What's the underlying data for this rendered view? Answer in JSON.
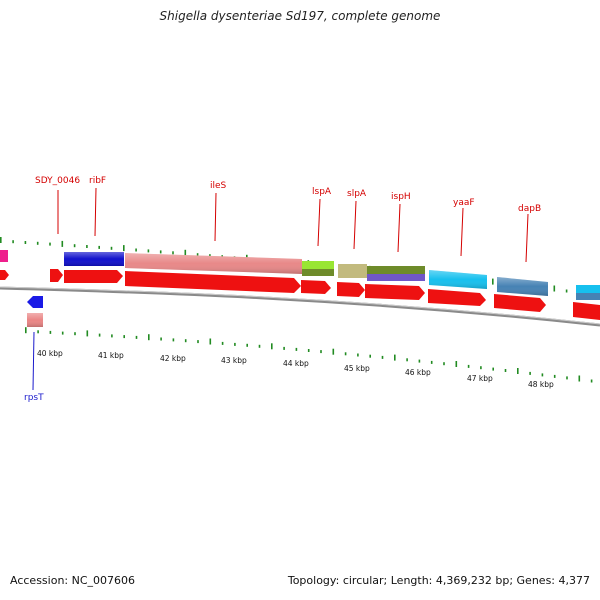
{
  "title": "Shigella dysenteriae Sd197, complete genome",
  "footer": {
    "accession": "Accession: NC_007606",
    "summary": "Topology: circular; Length: 4,369,232 bp; Genes: 4,377"
  },
  "colors": {
    "background": "#ffffff",
    "cds_red": "#ee1111",
    "label_red": "#d40000",
    "label_blue": "#1a1acc",
    "backbone": "#8a8a8a",
    "tick_green": "#228b22"
  },
  "scale_labels": [
    "40 kbp",
    "41 kbp",
    "42 kbp",
    "43 kbp",
    "44 kbp",
    "45 kbp",
    "46 kbp",
    "47 kbp",
    "48 kbp"
  ],
  "gene_labels": [
    {
      "name": "SDY_0046",
      "color": "#d40000"
    },
    {
      "name": "ribF",
      "color": "#d40000"
    },
    {
      "name": "ileS",
      "color": "#d40000"
    },
    {
      "name": "lspA",
      "color": "#d40000"
    },
    {
      "name": "slpA",
      "color": "#d40000"
    },
    {
      "name": "ispH",
      "color": "#d40000"
    },
    {
      "name": "yaaF",
      "color": "#d40000"
    },
    {
      "name": "dapB",
      "color": "#d40000"
    },
    {
      "name": "rpsT",
      "color": "#1a1acc"
    }
  ],
  "feature_colors": {
    "cog_pink": "#ee1f8c",
    "cog_blue": "#1010cc",
    "cog_salmon": "#e88888",
    "cog_lime": "#99e633",
    "cog_olive_green": "#6e8b2a",
    "cog_khaki": "#c2ba7e",
    "cog_purple": "#7057c8",
    "cog_cyan": "#17c0ee",
    "cog_steel": "#4682b4",
    "cog_light_red": "#ea8585"
  }
}
